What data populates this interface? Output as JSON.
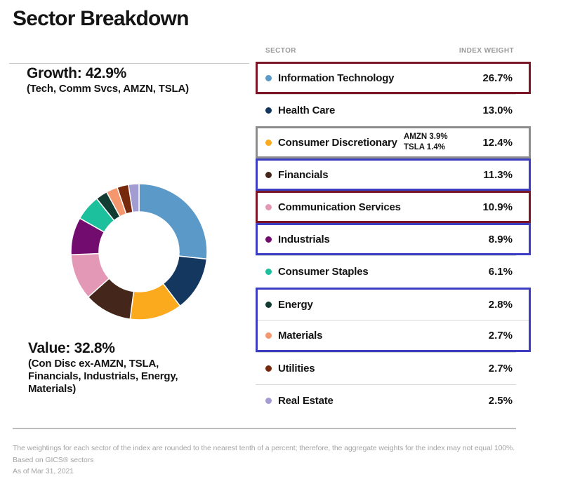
{
  "page": {
    "title": "Sector Breakdown"
  },
  "annotations": {
    "growth": {
      "headline": "Growth: 42.9%",
      "detail": "(Tech, Comm Svcs, AMZN, TSLA)"
    },
    "value": {
      "headline": "Value: 32.8%",
      "detail_lines": [
        "(Con Disc ex-AMZN, TSLA,",
        "Financials, Industrials, Energy,",
        "Materials)"
      ]
    }
  },
  "table": {
    "headers": {
      "sector": "SECTOR",
      "weight": "INDEX WEIGHT"
    },
    "highlight_colors": {
      "maroon": "#7b1626",
      "gray": "#8d8d8d",
      "blue": "#3b3ec0"
    },
    "groups": [
      {
        "highlight": "maroon",
        "rows": [
          {
            "sector": "Information Technology",
            "weight": "26.7%",
            "color": "#5b9ac8"
          }
        ]
      },
      {
        "highlight": null,
        "rows": [
          {
            "sector": "Health Care",
            "weight": "13.0%",
            "color": "#14375f"
          }
        ]
      },
      {
        "highlight": "gray",
        "rows": [
          {
            "sector": "Consumer Discretionary",
            "weight": "12.4%",
            "color": "#fbaa1e",
            "note_lines": [
              "AMZN 3.9%",
              "TSLA 1.4%"
            ]
          }
        ]
      },
      {
        "highlight": "blue",
        "rows": [
          {
            "sector": "Financials",
            "weight": "11.3%",
            "color": "#44271a"
          }
        ]
      },
      {
        "highlight": "maroon",
        "rows": [
          {
            "sector": "Communication Services",
            "weight": "10.9%",
            "color": "#e398b6"
          }
        ]
      },
      {
        "highlight": "blue",
        "rows": [
          {
            "sector": "Industrials",
            "weight": "8.9%",
            "color": "#720d6f"
          }
        ]
      },
      {
        "highlight": null,
        "rows": [
          {
            "sector": "Consumer Staples",
            "weight": "6.1%",
            "color": "#1dc09d"
          }
        ]
      },
      {
        "highlight": "blue",
        "rows": [
          {
            "sector": "Energy",
            "weight": "2.8%",
            "color": "#123c31"
          },
          {
            "sector": "Materials",
            "weight": "2.7%",
            "color": "#f4966e"
          }
        ]
      },
      {
        "highlight": null,
        "rows": [
          {
            "sector": "Utilities",
            "weight": "2.7%",
            "color": "#77290d"
          }
        ]
      },
      {
        "highlight": null,
        "rows": [
          {
            "sector": "Real Estate",
            "weight": "2.5%",
            "color": "#a39cd2"
          }
        ]
      }
    ]
  },
  "chart_data": {
    "type": "pie",
    "subtype": "donut",
    "title": "Sector Breakdown",
    "categories": [
      "Information Technology",
      "Health Care",
      "Consumer Discretionary",
      "Financials",
      "Communication Services",
      "Industrials",
      "Consumer Staples",
      "Energy",
      "Materials",
      "Utilities",
      "Real Estate"
    ],
    "values": [
      26.7,
      13.0,
      12.4,
      11.3,
      10.9,
      8.9,
      6.1,
      2.8,
      2.7,
      2.7,
      2.5
    ],
    "colors": [
      "#5b9ac8",
      "#14375f",
      "#fbaa1e",
      "#44271a",
      "#e398b6",
      "#720d6f",
      "#1dc09d",
      "#123c31",
      "#f4966e",
      "#77290d",
      "#a39cd2"
    ],
    "start_angle_deg_from_top": 0,
    "direction": "clockwise",
    "legend_position": "table-right",
    "annotations": [
      "Growth: 42.9% (Tech, Comm Svcs, AMZN, TSLA)",
      "Value: 32.8% (Con Disc ex-AMZN, TSLA, Financials, Industrials, Energy, Materials)",
      "Consumer Discretionary includes AMZN 3.9%, TSLA 1.4%"
    ]
  },
  "footer": {
    "disclaimer": "The weightings for each sector of the index are rounded to the nearest tenth of a percent; therefore, the aggregate weights for the index may not equal 100%.",
    "source": "Based on GICS® sectors",
    "as_of": "As of Mar 31, 2021"
  }
}
